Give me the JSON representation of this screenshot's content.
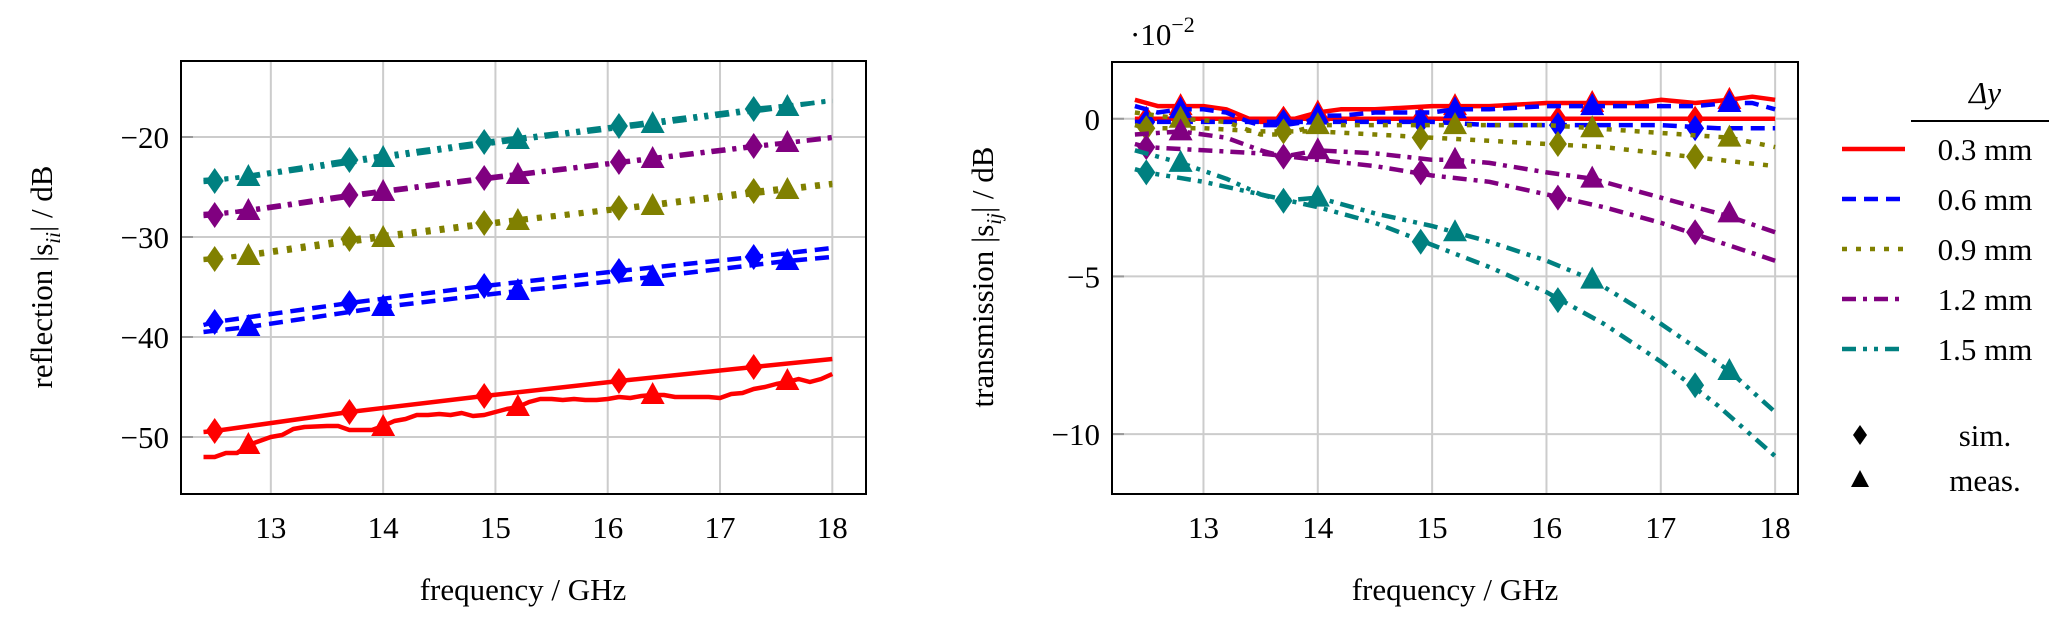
{
  "chart_data": [
    {
      "type": "line",
      "id": "reflection",
      "title": "",
      "xlabel": "frequency / GHz",
      "ylabel_prefix": "reflection |s",
      "ylabel_sub": "ii",
      "ylabel_suffix": "| / dB",
      "xlim": [
        12.2,
        18.3
      ],
      "ylim": [
        -55.7,
        -12.4
      ],
      "xticks": [
        13,
        14,
        15,
        16,
        17,
        18
      ],
      "yticks": [
        -50,
        -40,
        -30,
        -20
      ],
      "ytick_labels": [
        "−50",
        "−40",
        "−30",
        "−20"
      ],
      "grid": true,
      "series": [
        {
          "name": "0.3 mm sim.",
          "group": "0.3 mm",
          "kind": "sim",
          "x": [
            12.4,
            12.5,
            13.7,
            14.9,
            16.1,
            17.3,
            18.0
          ],
          "y": [
            -49.5,
            -49.4,
            -47.5,
            -45.9,
            -44.4,
            -43.0,
            -42.2
          ],
          "markers_x": [
            12.5,
            13.7,
            14.9,
            16.1,
            17.3
          ]
        },
        {
          "name": "0.3 mm meas.",
          "group": "0.3 mm",
          "kind": "meas",
          "x": [
            12.4,
            12.5,
            12.6,
            12.7,
            12.8,
            12.9,
            13.0,
            13.1,
            13.2,
            13.3,
            13.5,
            13.6,
            13.7,
            13.8,
            13.9,
            14.0,
            14.1,
            14.2,
            14.3,
            14.4,
            14.5,
            14.6,
            14.7,
            14.8,
            14.9,
            15.0,
            15.1,
            15.2,
            15.3,
            15.4,
            15.5,
            15.6,
            15.7,
            15.8,
            15.9,
            16.0,
            16.1,
            16.2,
            16.3,
            16.4,
            16.5,
            16.6,
            16.7,
            16.8,
            16.9,
            17.0,
            17.1,
            17.2,
            17.3,
            17.4,
            17.5,
            17.6,
            17.7,
            17.8,
            17.9,
            18.0
          ],
          "y": [
            -52.0,
            -52.0,
            -51.6,
            -51.6,
            -50.8,
            -50.4,
            -50.0,
            -49.8,
            -49.2,
            -49.0,
            -48.9,
            -48.9,
            -49.3,
            -49.3,
            -49.3,
            -48.9,
            -48.4,
            -48.2,
            -47.8,
            -47.8,
            -47.7,
            -47.8,
            -47.6,
            -47.9,
            -47.8,
            -47.5,
            -47.2,
            -47.0,
            -46.5,
            -46.2,
            -46.2,
            -46.3,
            -46.2,
            -46.3,
            -46.3,
            -46.2,
            -46.0,
            -46.1,
            -45.9,
            -45.8,
            -45.8,
            -46.0,
            -46.0,
            -46.0,
            -46.0,
            -46.1,
            -45.7,
            -45.6,
            -45.2,
            -45.0,
            -44.7,
            -44.5,
            -44.2,
            -44.5,
            -44.2,
            -43.7
          ],
          "markers_x": [
            12.8,
            14.0,
            15.2,
            16.4,
            17.6
          ],
          "markers_y": [
            -50.8,
            -49.0,
            -47.0,
            -45.8,
            -44.4
          ]
        },
        {
          "name": "0.6 mm sim.",
          "group": "0.6 mm",
          "kind": "sim",
          "x": [
            12.4,
            12.5,
            13.7,
            14.9,
            16.1,
            17.3,
            18.0
          ],
          "y": [
            -38.8,
            -38.5,
            -36.6,
            -34.9,
            -33.4,
            -32.0,
            -31.1
          ],
          "markers_x": [
            12.5,
            13.7,
            14.9,
            16.1,
            17.3
          ]
        },
        {
          "name": "0.6 mm meas.",
          "group": "0.6 mm",
          "kind": "meas",
          "x": [
            12.4,
            12.8,
            14.0,
            15.2,
            16.4,
            17.6,
            18.0
          ],
          "y": [
            -39.5,
            -39.0,
            -37.0,
            -35.4,
            -34.0,
            -32.4,
            -32.0
          ],
          "markers_x": [
            12.8,
            14.0,
            15.2,
            16.4,
            17.6
          ]
        },
        {
          "name": "0.9 mm sim.",
          "group": "0.9 mm",
          "kind": "sim",
          "x": [
            12.4,
            12.5,
            13.7,
            14.9,
            16.1,
            17.3,
            18.0
          ],
          "y": [
            -32.3,
            -32.2,
            -30.2,
            -28.6,
            -27.1,
            -25.4,
            -24.6
          ],
          "markers_x": [
            12.5,
            13.7,
            14.9,
            16.1,
            17.3
          ]
        },
        {
          "name": "0.9 mm meas.",
          "group": "0.9 mm",
          "kind": "meas",
          "x": [
            12.4,
            12.8,
            14.0,
            15.2,
            16.4,
            17.6,
            18.0
          ],
          "y": [
            -32.2,
            -31.9,
            -30.1,
            -28.4,
            -26.9,
            -25.3,
            -24.8
          ],
          "markers_x": [
            12.8,
            14.0,
            15.2,
            16.4,
            17.6
          ]
        },
        {
          "name": "1.2 mm sim.",
          "group": "1.2 mm",
          "kind": "sim",
          "x": [
            12.4,
            12.5,
            13.7,
            14.9,
            16.1,
            17.3,
            18.0
          ],
          "y": [
            -27.9,
            -27.8,
            -25.8,
            -24.1,
            -22.5,
            -20.9,
            -20.1
          ],
          "markers_x": [
            12.5,
            13.7,
            14.9,
            16.1,
            17.3
          ]
        },
        {
          "name": "1.2 mm meas.",
          "group": "1.2 mm",
          "kind": "meas",
          "x": [
            12.4,
            12.8,
            14.0,
            15.2,
            16.4,
            17.6,
            18.0
          ],
          "y": [
            -27.7,
            -27.4,
            -25.5,
            -23.8,
            -22.2,
            -20.6,
            -20.0
          ],
          "markers_x": [
            12.8,
            14.0,
            15.2,
            16.4,
            17.6
          ]
        },
        {
          "name": "1.5 mm sim.",
          "group": "1.5 mm",
          "kind": "sim",
          "x": [
            12.4,
            12.5,
            13.7,
            14.9,
            16.1,
            17.3,
            18.0
          ],
          "y": [
            -24.5,
            -24.4,
            -22.3,
            -20.5,
            -18.9,
            -17.2,
            -16.4
          ],
          "markers_x": [
            12.5,
            13.7,
            14.9,
            16.1,
            17.3
          ]
        },
        {
          "name": "1.5 mm meas.",
          "group": "1.5 mm",
          "kind": "meas",
          "x": [
            12.4,
            12.8,
            14.0,
            15.2,
            16.4,
            17.6,
            18.0
          ],
          "y": [
            -24.3,
            -24.0,
            -22.1,
            -20.3,
            -18.7,
            -17.0,
            -16.3
          ],
          "markers_x": [
            12.8,
            14.0,
            15.2,
            16.4,
            17.6
          ]
        }
      ]
    },
    {
      "type": "line",
      "id": "transmission",
      "title": "",
      "scale_note": "·10",
      "scale_exp": "−2",
      "xlabel": "frequency / GHz",
      "ylabel_prefix": "transmission |s",
      "ylabel_sub": "ij",
      "ylabel_suffix": "| / dB",
      "xlim": [
        12.2,
        18.2
      ],
      "ylim": [
        -11.9,
        1.8
      ],
      "xticks": [
        13,
        14,
        15,
        16,
        17,
        18
      ],
      "yticks": [
        -10,
        -5,
        0
      ],
      "ytick_labels": [
        "−10",
        "−5",
        "0"
      ],
      "grid": true,
      "series": [
        {
          "name": "0.3 mm sim.",
          "group": "0.3 mm",
          "kind": "sim",
          "x": [
            12.4,
            12.5,
            13.0,
            13.5,
            14.0,
            14.5,
            15.0,
            15.5,
            16.0,
            16.5,
            17.0,
            17.5,
            18.0
          ],
          "y": [
            0.0,
            0.0,
            0.0,
            0.0,
            0.0,
            0.0,
            0.0,
            0.0,
            0.0,
            0.0,
            0.0,
            0.0,
            0.0
          ],
          "markers_x": [
            12.5,
            13.7,
            14.9,
            16.1,
            17.3
          ],
          "markers_y": [
            0.0,
            0.0,
            0.0,
            0.0,
            0.0
          ]
        },
        {
          "name": "0.3 mm meas.",
          "group": "0.3 mm",
          "kind": "meas",
          "x": [
            12.4,
            12.6,
            12.8,
            13.0,
            13.2,
            13.4,
            13.5,
            13.7,
            13.9,
            14.0,
            14.2,
            14.5,
            15.0,
            15.2,
            15.5,
            16.0,
            16.4,
            16.8,
            17.0,
            17.3,
            17.6,
            17.8,
            18.0
          ],
          "y": [
            0.6,
            0.4,
            0.4,
            0.4,
            0.3,
            0.0,
            -0.1,
            -0.1,
            0.1,
            0.2,
            0.3,
            0.3,
            0.4,
            0.4,
            0.4,
            0.5,
            0.5,
            0.5,
            0.6,
            0.5,
            0.6,
            0.7,
            0.6
          ],
          "markers_x": [
            12.8,
            14.0,
            15.2,
            16.4,
            17.6
          ],
          "markers_y": [
            0.4,
            0.2,
            0.4,
            0.5,
            0.6
          ]
        },
        {
          "name": "0.6 mm sim.",
          "group": "0.6 mm",
          "kind": "sim",
          "x": [
            12.4,
            12.5,
            13.0,
            13.5,
            14.0,
            14.5,
            15.0,
            15.5,
            16.0,
            16.5,
            17.0,
            17.5,
            18.0
          ],
          "y": [
            -0.1,
            -0.1,
            -0.1,
            -0.1,
            -0.1,
            -0.1,
            -0.1,
            -0.2,
            -0.2,
            -0.2,
            -0.2,
            -0.3,
            -0.3
          ],
          "markers_x": [
            12.5,
            13.7,
            14.9,
            16.1,
            17.3
          ],
          "markers_y": [
            -0.1,
            -0.1,
            -0.1,
            -0.2,
            -0.3
          ]
        },
        {
          "name": "0.6 mm meas.",
          "group": "0.6 mm",
          "kind": "meas",
          "x": [
            12.4,
            12.6,
            12.8,
            13.0,
            13.2,
            13.4,
            13.5,
            13.7,
            13.9,
            14.0,
            14.2,
            14.5,
            15.0,
            15.2,
            15.5,
            16.0,
            16.4,
            16.8,
            17.0,
            17.3,
            17.6,
            17.8,
            18.0
          ],
          "y": [
            0.4,
            0.2,
            0.3,
            0.3,
            0.2,
            -0.1,
            -0.2,
            -0.2,
            -0.1,
            0.1,
            0.1,
            0.2,
            0.2,
            0.3,
            0.3,
            0.4,
            0.4,
            0.4,
            0.4,
            0.4,
            0.5,
            0.5,
            0.3
          ],
          "markers_x": [
            12.8,
            14.0,
            15.2,
            16.4,
            17.6
          ],
          "markers_y": [
            0.3,
            0.1,
            0.3,
            0.4,
            0.5
          ]
        },
        {
          "name": "0.9 mm sim.",
          "group": "0.9 mm",
          "kind": "sim",
          "x": [
            12.4,
            12.5,
            13.0,
            13.5,
            14.0,
            14.5,
            15.0,
            15.5,
            16.0,
            16.5,
            17.0,
            17.5,
            18.0
          ],
          "y": [
            -0.2,
            -0.3,
            -0.3,
            -0.4,
            -0.4,
            -0.5,
            -0.6,
            -0.7,
            -0.8,
            -0.9,
            -1.1,
            -1.3,
            -1.5
          ],
          "markers_x": [
            12.5,
            13.7,
            14.9,
            16.1,
            17.3
          ],
          "markers_y": [
            -0.3,
            -0.4,
            -0.6,
            -0.8,
            -1.2
          ]
        },
        {
          "name": "0.9 mm meas.",
          "group": "0.9 mm",
          "kind": "meas",
          "x": [
            12.4,
            12.8,
            13.2,
            13.5,
            13.7,
            14.0,
            14.5,
            15.0,
            15.2,
            15.5,
            16.0,
            16.4,
            16.8,
            17.2,
            17.6,
            18.0
          ],
          "y": [
            0.2,
            0.0,
            -0.1,
            -0.5,
            -0.5,
            -0.2,
            -0.2,
            -0.2,
            -0.2,
            -0.2,
            -0.2,
            -0.3,
            -0.4,
            -0.5,
            -0.6,
            -0.9
          ],
          "markers_x": [
            12.8,
            14.0,
            15.2,
            16.4,
            17.6
          ],
          "markers_y": [
            0.0,
            -0.2,
            -0.2,
            -0.3,
            -0.6
          ]
        },
        {
          "name": "1.2 mm sim.",
          "group": "1.2 mm",
          "kind": "sim",
          "x": [
            12.4,
            12.5,
            13.0,
            13.5,
            14.0,
            14.5,
            15.0,
            15.5,
            16.0,
            16.5,
            17.0,
            17.5,
            18.0
          ],
          "y": [
            -0.8,
            -0.9,
            -1.0,
            -1.1,
            -1.3,
            -1.5,
            -1.8,
            -2.0,
            -2.4,
            -2.8,
            -3.3,
            -3.9,
            -4.5
          ],
          "markers_x": [
            12.5,
            13.7,
            14.9,
            16.1,
            17.3
          ],
          "markers_y": [
            -0.9,
            -1.2,
            -1.7,
            -2.5,
            -3.6
          ]
        },
        {
          "name": "1.2 mm meas.",
          "group": "1.2 mm",
          "kind": "meas",
          "x": [
            12.4,
            12.8,
            13.2,
            13.5,
            13.7,
            14.0,
            14.5,
            15.0,
            15.2,
            15.5,
            16.0,
            16.4,
            16.8,
            17.2,
            17.6,
            18.0
          ],
          "y": [
            -0.5,
            -0.4,
            -0.6,
            -1.0,
            -1.2,
            -1.0,
            -1.1,
            -1.3,
            -1.3,
            -1.4,
            -1.7,
            -1.9,
            -2.3,
            -2.7,
            -3.1,
            -3.6
          ],
          "markers_x": [
            12.8,
            14.0,
            15.2,
            16.4,
            17.6
          ],
          "markers_y": [
            -0.4,
            -1.0,
            -1.3,
            -1.9,
            -3.0
          ]
        },
        {
          "name": "1.5 mm sim.",
          "group": "1.5 mm",
          "kind": "sim",
          "x": [
            12.4,
            12.5,
            13.0,
            13.5,
            14.0,
            14.5,
            15.0,
            15.5,
            16.0,
            16.5,
            17.0,
            17.5,
            18.0
          ],
          "y": [
            -1.6,
            -1.7,
            -2.0,
            -2.4,
            -2.8,
            -3.3,
            -4.0,
            -4.7,
            -5.5,
            -6.5,
            -7.7,
            -9.1,
            -10.7
          ],
          "markers_x": [
            12.5,
            13.7,
            14.9,
            16.1,
            17.3
          ],
          "markers_y": [
            -1.7,
            -2.6,
            -3.9,
            -5.75,
            -8.45
          ]
        },
        {
          "name": "1.5 mm meas.",
          "group": "1.5 mm",
          "kind": "meas",
          "x": [
            12.4,
            12.8,
            13.2,
            13.5,
            13.7,
            14.0,
            14.5,
            15.0,
            15.2,
            15.5,
            16.0,
            16.4,
            16.8,
            17.2,
            17.6,
            18.0
          ],
          "y": [
            -1.0,
            -1.4,
            -1.9,
            -2.4,
            -2.6,
            -2.5,
            -3.0,
            -3.4,
            -3.6,
            -3.9,
            -4.5,
            -5.1,
            -6.0,
            -7.0,
            -8.0,
            -9.3
          ],
          "markers_x": [
            12.8,
            14.0,
            15.2,
            16.4,
            17.6
          ],
          "markers_y": [
            -1.4,
            -2.5,
            -3.6,
            -5.1,
            -8.0
          ]
        }
      ]
    }
  ],
  "legend": {
    "title": "Δy",
    "placement": "right",
    "entries": [
      {
        "label": "0.3 mm",
        "color": "#ff0000",
        "style": "solid"
      },
      {
        "label": "0.6 mm",
        "color": "#0000ff",
        "style": "dashed"
      },
      {
        "label": "0.9 mm",
        "color": "#808000",
        "style": "dotted"
      },
      {
        "label": "1.2 mm",
        "color": "#800080",
        "style": "dashdot"
      },
      {
        "label": "1.5 mm",
        "color": "#008080",
        "style": "dashdotdot"
      }
    ],
    "marker_entries": [
      {
        "label": "sim.",
        "marker": "diamond"
      },
      {
        "label": "meas.",
        "marker": "triangle"
      }
    ]
  }
}
